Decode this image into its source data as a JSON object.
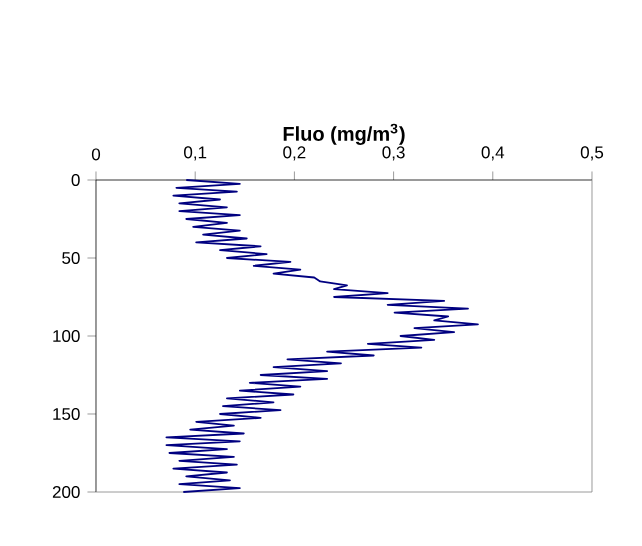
{
  "chart_data": {
    "type": "line",
    "title": "Fluo (mg/m$^{3}$)",
    "xlim": [
      0,
      0.5
    ],
    "ylim": [
      200,
      0
    ],
    "xticks": [
      0,
      {
        "value": 0.1,
        "label": "0,1"
      },
      {
        "value": 0.2,
        "label": "0,2"
      },
      {
        "value": 0.3,
        "label": "0,3"
      },
      {
        "value": 0.4,
        "label": "0,4"
      },
      {
        "value": 0.5,
        "label": "0,5"
      }
    ],
    "yticks": [
      0,
      50,
      100,
      150,
      200
    ],
    "marker": "none",
    "line_style": "solid",
    "series": [
      {
        "color": "#000080",
        "x": [
          0.091,
          0.145,
          0.081,
          0.142,
          0.078,
          0.125,
          0.084,
          0.132,
          0.084,
          0.145,
          0.091,
          0.132,
          0.098,
          0.145,
          0.108,
          0.152,
          0.101,
          0.166,
          0.125,
          0.172,
          0.132,
          0.196,
          0.159,
          0.206,
          0.179,
          0.22,
          0.226,
          0.253,
          0.24,
          0.294,
          0.24,
          0.351,
          0.294,
          0.375,
          0.301,
          0.355,
          0.341,
          0.385,
          0.321,
          0.361,
          0.307,
          0.341,
          0.274,
          0.328,
          0.233,
          0.28,
          0.193,
          0.247,
          0.179,
          0.233,
          0.166,
          0.233,
          0.155,
          0.206,
          0.145,
          0.199,
          0.132,
          0.179,
          0.128,
          0.186,
          0.125,
          0.166,
          0.101,
          0.139,
          0.095,
          0.149,
          0.071,
          0.145,
          0.071,
          0.132,
          0.074,
          0.139,
          0.084,
          0.142,
          0.078,
          0.132,
          0.091,
          0.135,
          0.084,
          0.145,
          0.088
        ],
        "values": [
          0,
          2.5,
          5,
          7.5,
          10,
          12.5,
          15,
          17.5,
          20,
          22.5,
          25,
          27.5,
          30,
          32.5,
          35,
          37.5,
          40,
          42.5,
          45,
          47.5,
          50,
          52.5,
          55,
          57.5,
          60,
          62.5,
          65,
          67.5,
          70,
          72.5,
          75,
          77.5,
          80,
          82.5,
          85,
          87.5,
          90,
          92.5,
          95,
          97.5,
          100,
          102.5,
          105,
          107.5,
          110,
          112.5,
          115,
          117.5,
          120,
          122.5,
          125,
          127.5,
          130,
          132.5,
          135,
          137.5,
          140,
          142.5,
          145,
          147.5,
          150,
          152.5,
          155,
          157.5,
          160,
          162.5,
          165,
          167.5,
          170,
          172.5,
          175,
          177.5,
          180,
          182.5,
          185,
          187.5,
          190,
          192.5,
          195,
          197.5,
          200
        ]
      }
    ]
  }
}
